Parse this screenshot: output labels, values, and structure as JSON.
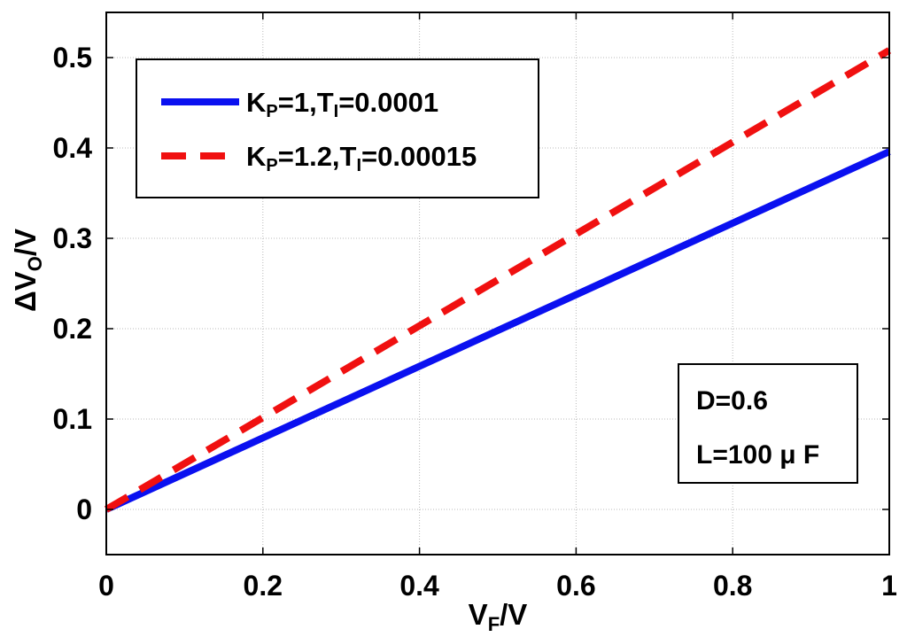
{
  "chart_data": {
    "type": "line",
    "xlabel": {
      "main": "V",
      "sub": "F",
      "suffix": "/V"
    },
    "ylabel": {
      "prefix": "ΔV",
      "sub": "O",
      "suffix": "/V"
    },
    "xlim": [
      0,
      1
    ],
    "ylim": [
      -0.05,
      0.55
    ],
    "xticks": [
      0,
      0.2,
      0.4,
      0.6,
      0.8,
      1
    ],
    "xtick_labels": [
      "0",
      "0.2",
      "0.4",
      "0.6",
      "0.8",
      "1"
    ],
    "yticks": [
      0,
      0.1,
      0.2,
      0.3,
      0.4,
      0.5
    ],
    "ytick_labels": [
      "0",
      "0.1",
      "0.2",
      "0.3",
      "0.4",
      "0.5"
    ],
    "grid": true,
    "legend_position": "top-left",
    "series": [
      {
        "name": "KP=1,TI=0.0001",
        "label": {
          "k": "K",
          "k_sub": "P",
          "mid": "=1,T",
          "t_sub": "I",
          "tail": "=0.0001"
        },
        "color": "#0a10f0",
        "style": "solid",
        "x": [
          0,
          1
        ],
        "y": [
          0,
          0.396
        ]
      },
      {
        "name": "KP=1.2,TI=0.00015",
        "label": {
          "k": "K",
          "k_sub": "P",
          "mid": "=1.2,T",
          "t_sub": "I",
          "tail": "=0.00015"
        },
        "color": "#f01010",
        "style": "dashed",
        "x": [
          0,
          1
        ],
        "y": [
          0,
          0.508
        ]
      }
    ],
    "annotations": {
      "line1": "D=0.6",
      "line2": "L=100 μ F"
    }
  }
}
